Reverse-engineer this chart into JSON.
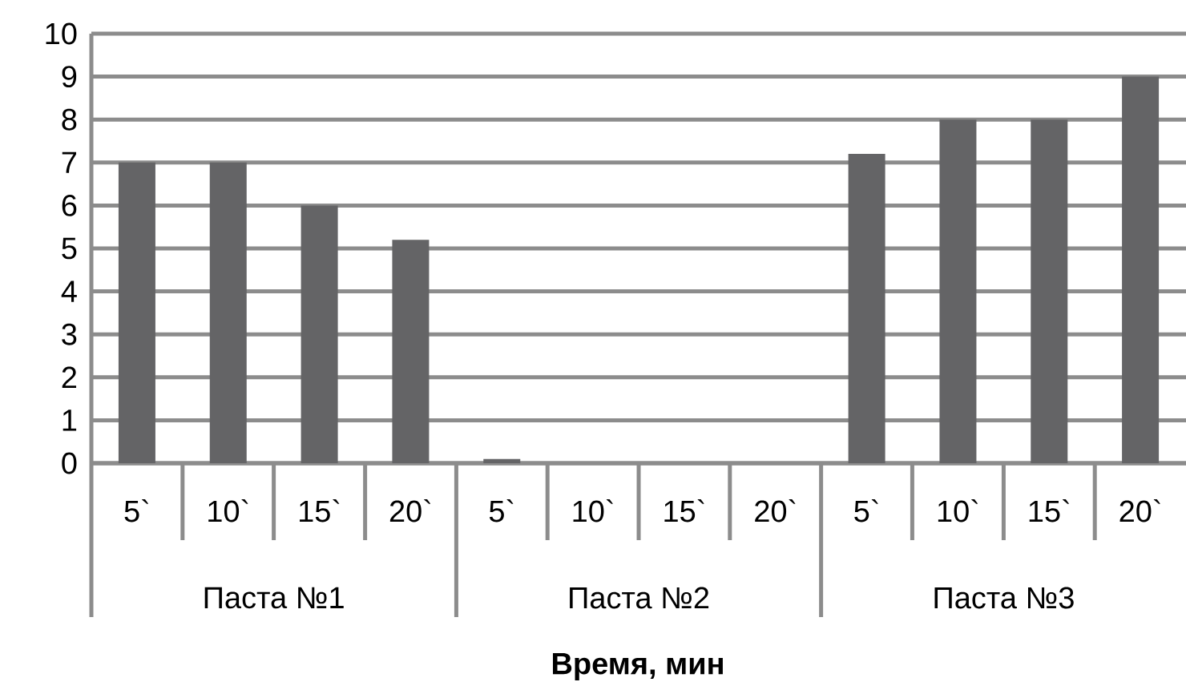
{
  "chart_data": {
    "type": "bar",
    "xlabel": "Время, мин",
    "categories": [
      "5`",
      "10`",
      "15`",
      "20`",
      "5`",
      "10`",
      "15`",
      "20`",
      "5`",
      "10`",
      "15`",
      "20`"
    ],
    "values": [
      7,
      7,
      6,
      5.2,
      0.1,
      0,
      0,
      0,
      7.2,
      8,
      8,
      9
    ],
    "color": "#646466",
    "ylim": [
      0,
      10
    ],
    "yticks": [
      0,
      1,
      2,
      3,
      4,
      5,
      6,
      7,
      8,
      9,
      10
    ],
    "grid": "y",
    "annotations": [
      "Паста №1",
      "Паста №2",
      "Паста №3"
    ]
  }
}
